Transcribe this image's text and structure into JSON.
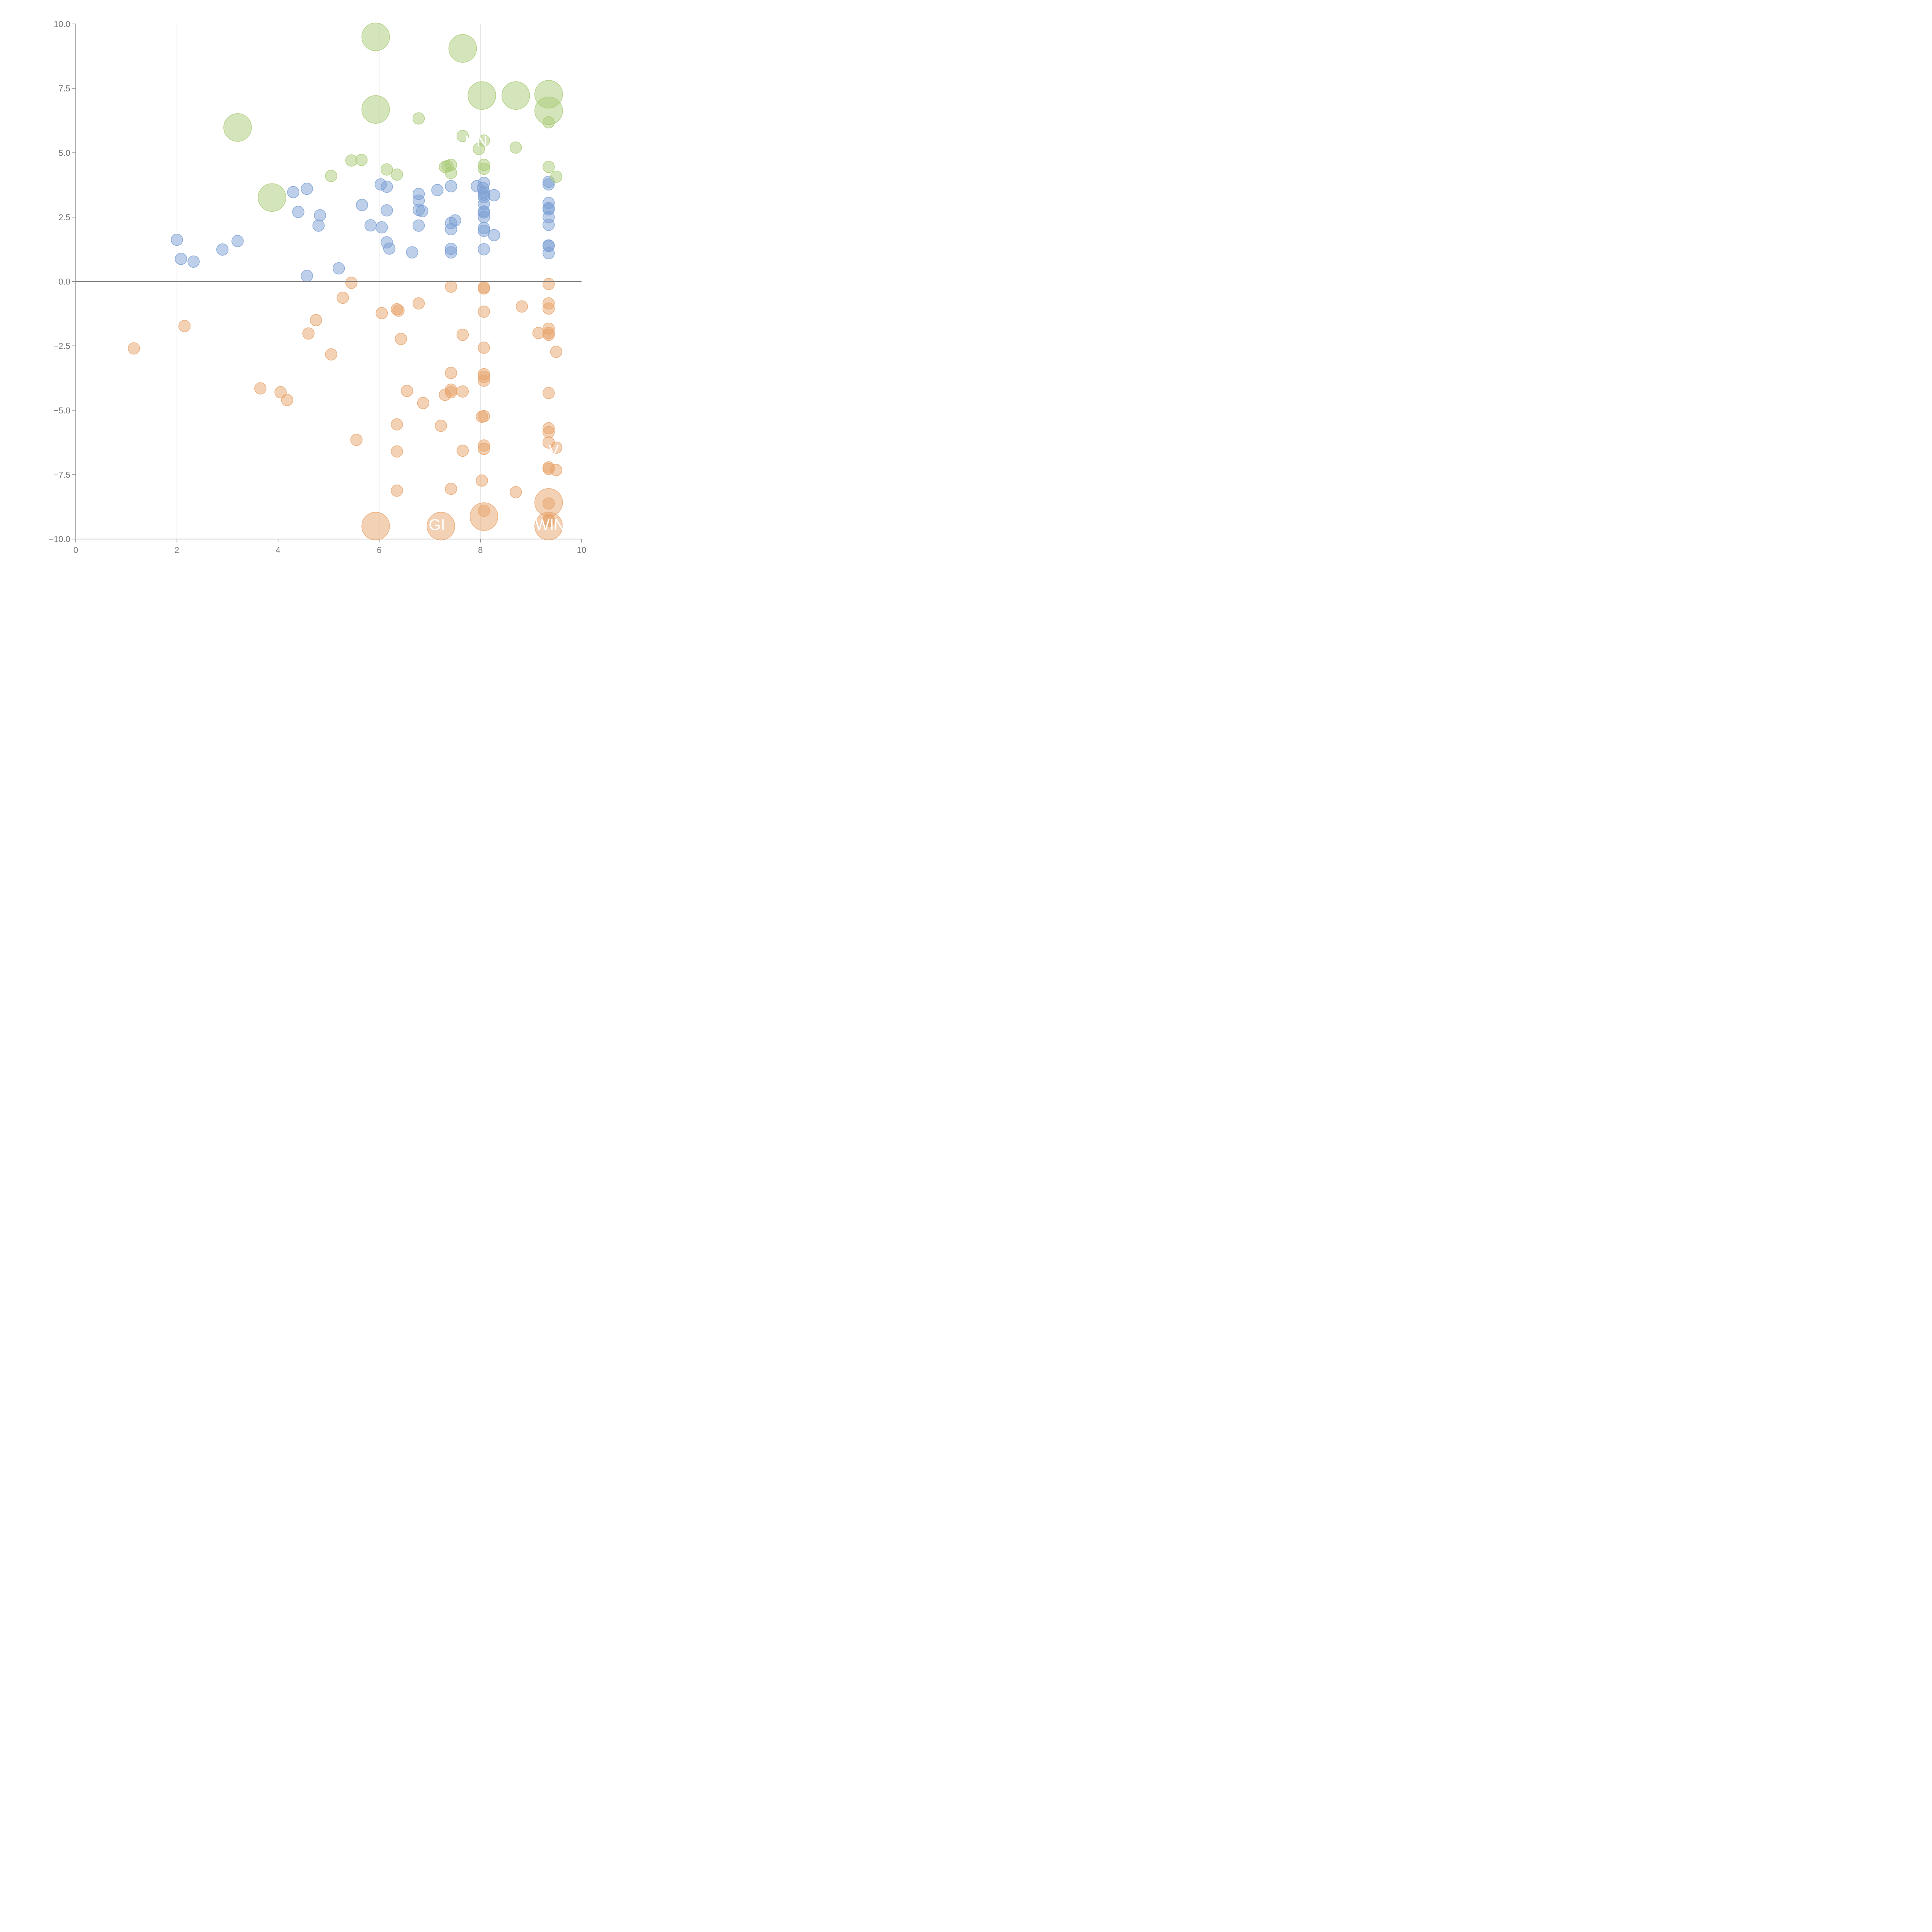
{
  "chart_data": {
    "type": "scatter",
    "title": "",
    "xlabel": "",
    "ylabel": "",
    "xlim": [
      0,
      10
    ],
    "ylim": [
      -10,
      10
    ],
    "x_ticks": [
      0,
      2,
      4,
      6,
      8,
      10
    ],
    "y_ticks": [
      -10,
      -7.5,
      -5,
      -2.5,
      0,
      2.5,
      5,
      7.5,
      10
    ],
    "x_tick_labels": [
      "0",
      "2",
      "4",
      "6",
      "8",
      "10"
    ],
    "y_tick_labels": [
      "−10.0",
      "−7.5",
      "−5.0",
      "−2.5",
      "0.0",
      "2.5",
      "5.0",
      "7.5",
      "10.0"
    ],
    "vertical_gridlines": [
      2,
      4,
      6,
      8
    ],
    "zero_line": 0,
    "colors": {
      "blue": "#7b9fd4",
      "orange": "#e8a46c",
      "green": "#aacb78"
    },
    "series": [
      {
        "name": "blue",
        "color": "#7b9fd4",
        "points": [
          [
            2.0,
            1.62,
            1
          ],
          [
            2.08,
            0.88,
            1
          ],
          [
            2.33,
            0.77,
            1
          ],
          [
            2.9,
            1.24,
            1
          ],
          [
            3.2,
            1.57,
            1
          ],
          [
            4.3,
            3.47,
            1
          ],
          [
            4.4,
            2.7,
            1
          ],
          [
            4.57,
            3.6,
            1
          ],
          [
            4.57,
            0.22,
            1
          ],
          [
            4.8,
            2.17,
            1
          ],
          [
            4.83,
            2.57,
            1
          ],
          [
            5.2,
            0.51,
            1
          ],
          [
            5.66,
            2.97,
            1
          ],
          [
            5.83,
            2.18,
            1
          ],
          [
            6.03,
            3.77,
            1
          ],
          [
            6.05,
            2.1,
            1
          ],
          [
            6.15,
            3.68,
            1
          ],
          [
            6.15,
            2.76,
            1
          ],
          [
            6.15,
            1.52,
            1
          ],
          [
            6.2,
            1.28,
            1
          ],
          [
            6.65,
            1.13,
            1
          ],
          [
            6.78,
            3.4,
            1
          ],
          [
            6.78,
            3.14,
            1
          ],
          [
            6.78,
            2.78,
            1
          ],
          [
            6.78,
            2.17,
            1
          ],
          [
            6.85,
            2.73,
            1
          ],
          [
            7.15,
            3.55,
            1
          ],
          [
            7.42,
            3.7,
            1
          ],
          [
            7.42,
            2.27,
            1
          ],
          [
            7.42,
            2.03,
            1
          ],
          [
            7.42,
            1.27,
            1
          ],
          [
            7.42,
            1.13,
            1
          ],
          [
            7.5,
            2.37,
            1
          ],
          [
            7.93,
            3.7,
            1
          ],
          [
            8.05,
            3.63,
            1
          ],
          [
            8.07,
            3.83,
            1
          ],
          [
            8.07,
            3.47,
            1
          ],
          [
            8.07,
            3.37,
            1
          ],
          [
            8.07,
            3.27,
            1
          ],
          [
            8.07,
            3.02,
            1
          ],
          [
            8.07,
            2.72,
            1
          ],
          [
            8.07,
            2.68,
            1
          ],
          [
            8.07,
            2.5,
            1
          ],
          [
            8.07,
            2.07,
            1
          ],
          [
            8.07,
            1.97,
            1
          ],
          [
            8.07,
            1.25,
            1
          ],
          [
            8.27,
            3.35,
            1
          ],
          [
            8.27,
            1.8,
            1
          ],
          [
            9.35,
            3.87,
            1
          ],
          [
            9.35,
            3.77,
            1
          ],
          [
            9.35,
            3.05,
            1
          ],
          [
            9.35,
            2.85,
            1
          ],
          [
            9.35,
            2.8,
            1
          ],
          [
            9.35,
            2.5,
            1
          ],
          [
            9.35,
            2.2,
            1
          ],
          [
            9.35,
            1.4,
            1
          ],
          [
            9.35,
            1.38,
            1
          ],
          [
            9.35,
            1.1,
            1
          ]
        ]
      },
      {
        "name": "orange",
        "color": "#e8a46c",
        "points": [
          [
            1.15,
            -2.6,
            1
          ],
          [
            2.15,
            -1.73,
            1
          ],
          [
            3.65,
            -4.15,
            1
          ],
          [
            4.05,
            -4.3,
            1
          ],
          [
            4.18,
            -4.6,
            1
          ],
          [
            4.6,
            -2.02,
            1
          ],
          [
            4.75,
            -1.5,
            1
          ],
          [
            5.05,
            -2.83,
            1
          ],
          [
            5.28,
            -0.63,
            1
          ],
          [
            5.45,
            -0.05,
            1
          ],
          [
            5.55,
            -6.15,
            1
          ],
          [
            5.93,
            -9.5,
            2.4
          ],
          [
            6.05,
            -1.23,
            1
          ],
          [
            6.35,
            -1.08,
            1
          ],
          [
            6.38,
            -1.13,
            1
          ],
          [
            6.35,
            -5.55,
            1
          ],
          [
            6.35,
            -6.6,
            1
          ],
          [
            6.35,
            -8.12,
            1
          ],
          [
            6.43,
            -2.23,
            1
          ],
          [
            6.55,
            -4.25,
            1
          ],
          [
            6.78,
            -0.85,
            1
          ],
          [
            6.87,
            -4.72,
            1
          ],
          [
            7.22,
            -5.6,
            1
          ],
          [
            7.22,
            -9.5,
            2.4
          ],
          [
            7.3,
            -4.4,
            1
          ],
          [
            7.42,
            -0.2,
            1
          ],
          [
            7.42,
            -3.55,
            1
          ],
          [
            7.42,
            -4.2,
            1
          ],
          [
            7.42,
            -4.3,
            1
          ],
          [
            7.42,
            -8.05,
            1
          ],
          [
            7.65,
            -2.07,
            1
          ],
          [
            7.65,
            -4.27,
            1
          ],
          [
            7.65,
            -6.57,
            1
          ],
          [
            8.03,
            -5.25,
            1
          ],
          [
            8.03,
            -7.73,
            1
          ],
          [
            8.07,
            -0.23,
            1
          ],
          [
            8.07,
            -0.27,
            1
          ],
          [
            8.07,
            -1.17,
            1
          ],
          [
            8.07,
            -2.57,
            1
          ],
          [
            8.07,
            -3.6,
            1
          ],
          [
            8.07,
            -3.7,
            1
          ],
          [
            8.07,
            -3.85,
            1
          ],
          [
            8.07,
            -5.23,
            1
          ],
          [
            8.07,
            -6.37,
            1
          ],
          [
            8.07,
            -6.5,
            1
          ],
          [
            8.07,
            -8.9,
            1
          ],
          [
            8.07,
            -9.13,
            2.4
          ],
          [
            8.7,
            -8.18,
            1
          ],
          [
            8.82,
            -0.97,
            1
          ],
          [
            9.15,
            -2.0,
            1
          ],
          [
            9.35,
            -0.1,
            1
          ],
          [
            9.35,
            -0.85,
            1
          ],
          [
            9.35,
            -1.05,
            1
          ],
          [
            9.35,
            -1.83,
            1
          ],
          [
            9.35,
            -2.0,
            1
          ],
          [
            9.35,
            -2.07,
            1
          ],
          [
            9.35,
            -4.33,
            1
          ],
          [
            9.35,
            -5.7,
            1
          ],
          [
            9.35,
            -5.85,
            1
          ],
          [
            9.35,
            -6.25,
            1
          ],
          [
            9.35,
            -7.22,
            1
          ],
          [
            9.35,
            -7.28,
            1
          ],
          [
            9.35,
            -8.58,
            2.4
          ],
          [
            9.35,
            -8.62,
            1
          ],
          [
            9.35,
            -9.25,
            1
          ],
          [
            9.35,
            -9.3,
            1
          ],
          [
            9.35,
            -9.5,
            2.4
          ],
          [
            9.5,
            -2.73,
            1
          ],
          [
            9.5,
            -6.45,
            1
          ],
          [
            9.5,
            -7.32,
            1
          ]
        ]
      },
      {
        "name": "green",
        "color": "#aacb78",
        "points": [
          [
            3.2,
            5.98,
            2.4
          ],
          [
            3.88,
            3.26,
            2.4
          ],
          [
            5.05,
            4.1,
            1
          ],
          [
            5.45,
            4.7,
            1
          ],
          [
            5.65,
            4.72,
            1
          ],
          [
            5.93,
            9.5,
            2.4
          ],
          [
            5.93,
            6.68,
            2.4
          ],
          [
            6.15,
            4.35,
            1
          ],
          [
            6.35,
            4.15,
            1
          ],
          [
            6.78,
            6.33,
            1
          ],
          [
            7.3,
            4.45,
            1
          ],
          [
            7.35,
            4.48,
            1
          ],
          [
            7.42,
            4.53,
            1
          ],
          [
            7.42,
            4.22,
            1
          ],
          [
            7.65,
            9.05,
            2.4
          ],
          [
            7.65,
            5.65,
            1
          ],
          [
            7.97,
            5.15,
            1
          ],
          [
            8.03,
            7.22,
            2.4
          ],
          [
            8.07,
            5.47,
            1
          ],
          [
            8.07,
            4.53,
            1
          ],
          [
            8.07,
            4.38,
            1
          ],
          [
            8.7,
            7.22,
            2.4
          ],
          [
            8.7,
            5.2,
            1
          ],
          [
            9.35,
            7.27,
            2.4
          ],
          [
            9.35,
            6.63,
            2.4
          ],
          [
            9.35,
            6.18,
            1
          ],
          [
            9.35,
            4.45,
            1
          ],
          [
            9.5,
            4.07,
            1
          ]
        ]
      }
    ],
    "annotations": [
      {
        "text": "UN",
        "x": 7.7,
        "y": 5.25,
        "color": "#ffffff"
      },
      {
        "text": "GI",
        "x": 6.98,
        "y": -9.65,
        "color": "#ffffff"
      },
      {
        "text": "WIN",
        "x": 9.08,
        "y": -9.65,
        "color": "#ffffff"
      },
      {
        "text": "V",
        "x": 9.35,
        "y": -6.75,
        "color": "#ffffff"
      }
    ]
  }
}
